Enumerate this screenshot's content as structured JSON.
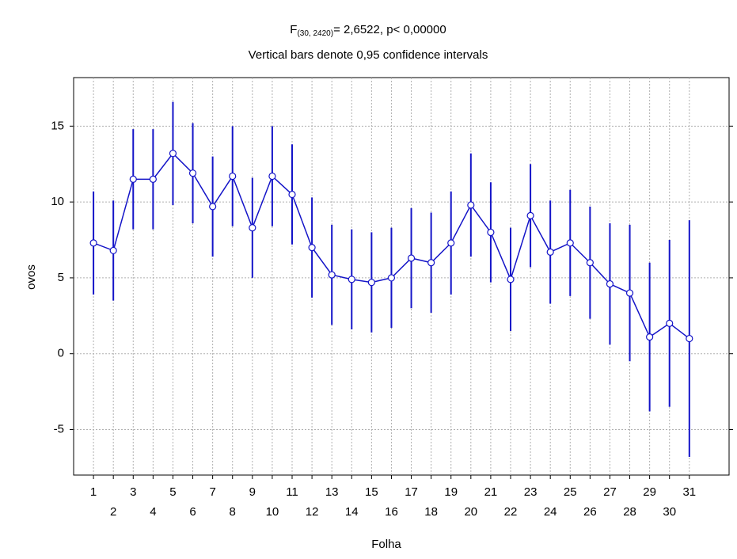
{
  "chart_data": {
    "type": "line",
    "title": {
      "main": "F",
      "sub": "(30, 2420)",
      "rest": "= 2,6522, p< 0,00000"
    },
    "subtitle": "Vertical bars denote 0,95 confidence intervals",
    "x_label": "Folha",
    "y_label": "ovos",
    "x": [
      1,
      2,
      3,
      4,
      5,
      6,
      7,
      8,
      9,
      10,
      11,
      12,
      13,
      14,
      15,
      16,
      17,
      18,
      19,
      20,
      21,
      22,
      23,
      24,
      25,
      26,
      27,
      28,
      29,
      30,
      31
    ],
    "xlim": [
      0,
      33
    ],
    "xticks": [
      1,
      2,
      3,
      4,
      5,
      6,
      7,
      8,
      9,
      10,
      11,
      12,
      13,
      14,
      15,
      16,
      17,
      18,
      19,
      20,
      21,
      22,
      23,
      24,
      25,
      26,
      27,
      28,
      29,
      30,
      31
    ],
    "ylim": [
      -8,
      18.2
    ],
    "yticks": [
      -5,
      0,
      5,
      10,
      15
    ],
    "grid": true,
    "series": [
      {
        "name": "ovos",
        "color": "#1414c8",
        "values": [
          7.3,
          6.8,
          11.5,
          11.5,
          13.2,
          11.9,
          9.7,
          11.7,
          8.3,
          11.7,
          10.5,
          7.0,
          5.2,
          4.9,
          4.7,
          5.0,
          6.3,
          6.0,
          7.3,
          9.8,
          8.0,
          4.9,
          9.1,
          6.7,
          7.3,
          6.0,
          4.6,
          4.0,
          1.1,
          2.0,
          1.0
        ],
        "errors": [
          3.4,
          3.3,
          3.3,
          3.3,
          3.4,
          3.3,
          3.3,
          3.3,
          3.3,
          3.3,
          3.3,
          3.3,
          3.3,
          3.3,
          3.3,
          3.3,
          3.3,
          3.3,
          3.4,
          3.4,
          3.3,
          3.4,
          3.4,
          3.4,
          3.5,
          3.7,
          4.0,
          4.5,
          4.9,
          5.5,
          7.8
        ]
      }
    ]
  }
}
